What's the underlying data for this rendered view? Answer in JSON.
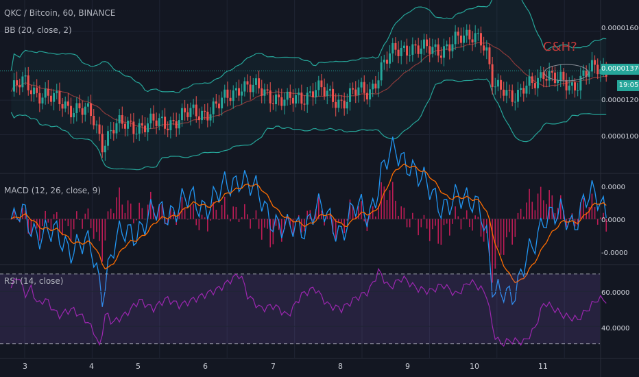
{
  "header": {
    "title": "QKC / Bitcoin, 60, BINANCE",
    "bb_label": "BB (20, close, 2)",
    "macd_label": "MACD (12, 26, close, 9)",
    "rsi_label": "RSI (14, close)",
    "annotation": "C&H?"
  },
  "price_axis": {
    "ticks": [
      "0.00001600",
      "0.00001200",
      "0.00001000"
    ],
    "last_price": "0.00001370",
    "countdown": "19:05"
  },
  "macd_axis": {
    "ticks": [
      "0.0000",
      "0.0000",
      "-0.0000"
    ]
  },
  "rsi_axis": {
    "ticks": [
      "60.0000",
      "40.0000"
    ]
  },
  "x_axis": {
    "ticks": [
      "3",
      "4",
      "5",
      "6",
      "7",
      "8",
      "9",
      "10",
      "11"
    ]
  },
  "colors": {
    "up": "#26a69a",
    "down": "#ef5350",
    "bb_band": "#26a69a",
    "bb_basis": "#8b3a3a",
    "macd": "#2196f3",
    "signal": "#ff6d00",
    "hist": "#e91e63",
    "rsi": "#9c27b0",
    "annotation": "#c23a3a",
    "price_badge": "#26a69a"
  },
  "chart_data": [
    {
      "type": "candlestick",
      "title": "QKC / Bitcoin, 60, BINANCE",
      "x_ticks": [
        "3",
        "4",
        "5",
        "6",
        "7",
        "8",
        "9",
        "10",
        "11"
      ],
      "y_ticks": [
        "0.00001000",
        "0.00001200",
        "0.00001600"
      ],
      "ylim": [
        7.8e-06,
        1.78e-05
      ],
      "close_path": [
        [
          2.8,
          1.25e-05
        ],
        [
          3.0,
          1.3e-05
        ],
        [
          3.2,
          1.25e-05
        ],
        [
          3.4,
          1.2e-05
        ],
        [
          3.6,
          1.18e-05
        ],
        [
          3.8,
          1.15e-05
        ],
        [
          4.0,
          1.1e-05
        ],
        [
          4.15,
          9.6e-06
        ],
        [
          4.3,
          1.04e-05
        ],
        [
          4.5,
          1.05e-05
        ],
        [
          4.7,
          1.06e-05
        ],
        [
          5.0,
          1.06e-05
        ],
        [
          5.3,
          1.1e-05
        ],
        [
          5.6,
          1.13e-05
        ],
        [
          5.9,
          1.17e-05
        ],
        [
          6.1,
          1.25e-05
        ],
        [
          6.2,
          1.3e-05
        ],
        [
          6.4,
          1.26e-05
        ],
        [
          6.7,
          1.23e-05
        ],
        [
          6.9,
          1.18e-05
        ],
        [
          7.1,
          1.22e-05
        ],
        [
          7.3,
          1.27e-05
        ],
        [
          7.5,
          1.22e-05
        ],
        [
          7.7,
          1.2e-05
        ],
        [
          7.9,
          1.24e-05
        ],
        [
          8.1,
          1.25e-05
        ],
        [
          8.3,
          1.4e-05
        ],
        [
          8.5,
          1.48e-05
        ],
        [
          8.7,
          1.52e-05
        ],
        [
          8.9,
          1.48e-05
        ],
        [
          9.1,
          1.5e-05
        ],
        [
          9.3,
          1.52e-05
        ],
        [
          9.5,
          1.55e-05
        ],
        [
          9.65,
          1.6e-05
        ],
        [
          9.75,
          1.58e-05
        ],
        [
          9.85,
          1.45e-05
        ],
        [
          9.95,
          1.25e-05
        ],
        [
          10.1,
          1.28e-05
        ],
        [
          10.3,
          1.22e-05
        ],
        [
          10.5,
          1.28e-05
        ],
        [
          10.7,
          1.38e-05
        ],
        [
          10.9,
          1.3e-05
        ],
        [
          11.1,
          1.28e-05
        ],
        [
          11.3,
          1.36e-05
        ],
        [
          11.5,
          1.37e-05
        ],
        [
          11.6,
          1.37e-05
        ]
      ],
      "overlays": [
        "Bollinger Bands (20, close, 2)"
      ]
    },
    {
      "type": "line",
      "title": "MACD (12, 26, close, 9)",
      "series": [
        {
          "name": "MACD"
        },
        {
          "name": "Signal"
        },
        {
          "name": "Histogram"
        }
      ],
      "y_ticks": [
        "0.0000",
        "0.0000",
        "-0.0000"
      ]
    },
    {
      "type": "line",
      "title": "RSI (14, close)",
      "y_ticks": [
        "60.0000",
        "40.0000"
      ],
      "bands": [
        30,
        70
      ],
      "ylim": [
        22,
        75
      ],
      "series": [
        {
          "values_path": [
            [
              2.8,
              62
            ],
            [
              2.9,
              70
            ],
            [
              3.0,
              58
            ],
            [
              3.1,
              62
            ],
            [
              3.2,
              52
            ],
            [
              3.3,
              56
            ],
            [
              3.5,
              46
            ],
            [
              3.7,
              50
            ],
            [
              3.9,
              44
            ],
            [
              4.05,
              36
            ],
            [
              4.1,
              26
            ],
            [
              4.2,
              48
            ],
            [
              4.3,
              42
            ],
            [
              4.5,
              47
            ],
            [
              4.7,
              55
            ],
            [
              4.9,
              50
            ],
            [
              5.1,
              56
            ],
            [
              5.3,
              52
            ],
            [
              5.6,
              57
            ],
            [
              5.9,
              62
            ],
            [
              6.1,
              68
            ],
            [
              6.2,
              70
            ],
            [
              6.3,
              58
            ],
            [
              6.5,
              50
            ],
            [
              6.7,
              52
            ],
            [
              6.9,
              46
            ],
            [
              7.1,
              58
            ],
            [
              7.3,
              62
            ],
            [
              7.5,
              52
            ],
            [
              7.7,
              50
            ],
            [
              7.9,
              56
            ],
            [
              8.1,
              60
            ],
            [
              8.25,
              72
            ],
            [
              8.4,
              62
            ],
            [
              8.6,
              68
            ],
            [
              8.8,
              62
            ],
            [
              9.0,
              60
            ],
            [
              9.2,
              64
            ],
            [
              9.4,
              58
            ],
            [
              9.6,
              66
            ],
            [
              9.75,
              62
            ],
            [
              9.85,
              58
            ],
            [
              9.95,
              36
            ],
            [
              10.05,
              30
            ],
            [
              10.2,
              32
            ],
            [
              10.4,
              31
            ],
            [
              10.55,
              38
            ],
            [
              10.7,
              54
            ],
            [
              10.85,
              50
            ],
            [
              11.0,
              46
            ],
            [
              11.2,
              44
            ],
            [
              11.35,
              50
            ],
            [
              11.5,
              56
            ],
            [
              11.6,
              55
            ]
          ]
        }
      ]
    }
  ]
}
